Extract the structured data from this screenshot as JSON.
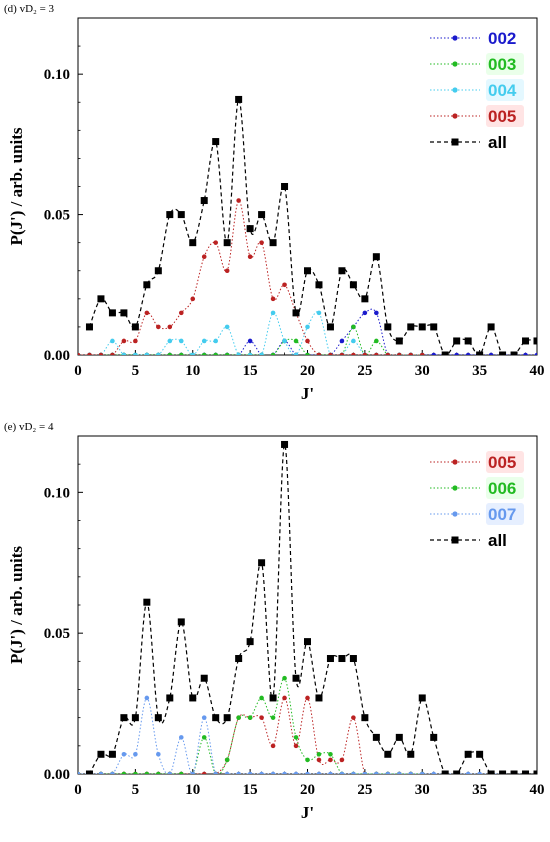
{
  "chart_data": [
    {
      "type": "line",
      "panel_label": "(d) vD₂ = 3",
      "xlabel": "J'",
      "ylabel": "P(J') / arb. units",
      "xlim": [
        0,
        40
      ],
      "ylim": [
        0,
        0.12
      ],
      "xticks": [
        0,
        5,
        10,
        15,
        20,
        25,
        30,
        35,
        40
      ],
      "yticks": [
        0.0,
        0.05,
        0.1
      ],
      "ytick_labels": [
        "0.00",
        "0.05",
        "0.10"
      ],
      "legend_position": "top-right",
      "series": [
        {
          "name": "002",
          "color": "#1a1acc",
          "label_bg": "#ffffff",
          "marker": "circle",
          "line": "dotted",
          "x": [
            0,
            1,
            2,
            3,
            4,
            5,
            6,
            7,
            8,
            9,
            10,
            11,
            12,
            13,
            14,
            15,
            16,
            17,
            18,
            19,
            20,
            21,
            22,
            23,
            24,
            25,
            26,
            27,
            28,
            29,
            30,
            31,
            32,
            33,
            34,
            35,
            36,
            37,
            38,
            39,
            40
          ],
          "y": [
            0,
            0,
            0,
            0,
            0,
            0,
            0,
            0,
            0,
            0,
            0,
            0,
            0,
            0,
            0,
            0.005,
            0,
            0,
            0.005,
            0,
            0,
            0,
            0,
            0.005,
            0.01,
            0.015,
            0.015,
            0,
            0,
            0,
            0,
            0,
            0,
            0,
            0,
            0,
            0,
            0,
            0,
            0,
            0
          ]
        },
        {
          "name": "003",
          "color": "#22bb22",
          "label_bg": "#eaffea",
          "marker": "circle",
          "line": "dotted",
          "x": [
            0,
            1,
            2,
            3,
            4,
            5,
            6,
            7,
            8,
            9,
            10,
            11,
            12,
            13,
            14,
            15,
            16,
            17,
            18,
            19,
            20,
            21,
            22,
            23,
            24,
            25,
            26,
            27,
            28,
            29,
            30
          ],
          "y": [
            0,
            0,
            0,
            0,
            0,
            0,
            0,
            0,
            0,
            0,
            0,
            0,
            0,
            0,
            0,
            0,
            0,
            0,
            0.005,
            0.005,
            0,
            0,
            0,
            0,
            0.01,
            0,
            0.005,
            0,
            0,
            0,
            0
          ]
        },
        {
          "name": "004",
          "color": "#44ccee",
          "label_bg": "#e4f8ff",
          "marker": "circle",
          "line": "dotted",
          "x": [
            0,
            1,
            2,
            3,
            4,
            5,
            6,
            7,
            8,
            9,
            10,
            11,
            12,
            13,
            14,
            15,
            16,
            17,
            18,
            19,
            20,
            21,
            22,
            23,
            24,
            25,
            26,
            27,
            28,
            29,
            30
          ],
          "y": [
            0,
            0,
            0,
            0.005,
            0,
            0,
            0,
            0,
            0.005,
            0.005,
            0,
            0.005,
            0.005,
            0.01,
            0,
            0,
            0,
            0.015,
            0.005,
            0,
            0.01,
            0.015,
            0,
            0,
            0.005,
            0,
            0,
            0,
            0,
            0,
            0
          ]
        },
        {
          "name": "005",
          "color": "#bb2222",
          "label_bg": "#ffe4e4",
          "marker": "circle",
          "line": "dotted",
          "x": [
            0,
            1,
            2,
            3,
            4,
            5,
            6,
            7,
            8,
            9,
            10,
            11,
            12,
            13,
            14,
            15,
            16,
            17,
            18,
            19,
            20,
            21,
            22,
            23,
            24,
            25,
            26,
            27,
            28,
            29,
            30
          ],
          "y": [
            0,
            0,
            0,
            0,
            0.005,
            0.005,
            0.015,
            0.01,
            0.01,
            0.015,
            0.02,
            0.035,
            0.04,
            0.03,
            0.055,
            0.035,
            0.04,
            0.02,
            0.025,
            0.015,
            0.005,
            0,
            0,
            0,
            0,
            0,
            0,
            0,
            0,
            0,
            0
          ]
        },
        {
          "name": "all",
          "color": "#000000",
          "label_bg": "#ffffff",
          "marker": "square",
          "line": "dashed",
          "x": [
            1,
            2,
            3,
            4,
            5,
            6,
            7,
            8,
            9,
            10,
            11,
            12,
            13,
            14,
            15,
            16,
            17,
            18,
            19,
            20,
            21,
            22,
            23,
            24,
            25,
            26,
            27,
            28,
            29,
            30,
            31,
            32,
            33,
            34,
            35,
            36,
            37,
            38,
            39,
            40
          ],
          "y": [
            0.01,
            0.02,
            0.015,
            0.015,
            0.01,
            0.025,
            0.03,
            0.05,
            0.05,
            0.04,
            0.055,
            0.076,
            0.04,
            0.091,
            0.045,
            0.05,
            0.04,
            0.06,
            0.015,
            0.03,
            0.025,
            0.01,
            0.03,
            0.025,
            0.02,
            0.035,
            0.01,
            0.005,
            0.01,
            0.01,
            0.01,
            0,
            0.005,
            0.005,
            0,
            0.01,
            0,
            0,
            0.005,
            0.005
          ]
        }
      ]
    },
    {
      "type": "line",
      "panel_label": "(e) vD₂ = 4",
      "xlabel": "J'",
      "ylabel": "P(J') / arb. units",
      "xlim": [
        0,
        40
      ],
      "ylim": [
        0,
        0.12
      ],
      "xticks": [
        0,
        5,
        10,
        15,
        20,
        25,
        30,
        35,
        40
      ],
      "yticks": [
        0.0,
        0.05,
        0.1
      ],
      "ytick_labels": [
        "0.00",
        "0.05",
        "0.10"
      ],
      "legend_position": "top-right",
      "series": [
        {
          "name": "005",
          "color": "#bb2222",
          "label_bg": "#ffe4e4",
          "marker": "circle",
          "line": "dotted",
          "x": [
            0,
            1,
            2,
            3,
            4,
            5,
            6,
            7,
            8,
            9,
            10,
            11,
            12,
            13,
            14,
            15,
            16,
            17,
            18,
            19,
            20,
            21,
            22,
            23,
            24,
            25,
            26,
            27,
            28,
            29,
            30
          ],
          "y": [
            0,
            0,
            0,
            0,
            0,
            0,
            0,
            0,
            0,
            0,
            0,
            0,
            0,
            0.005,
            0.02,
            0.02,
            0.02,
            0.01,
            0.027,
            0.01,
            0.027,
            0.005,
            0.005,
            0.005,
            0.02,
            0,
            0,
            0,
            0,
            0,
            0
          ]
        },
        {
          "name": "006",
          "color": "#22bb22",
          "label_bg": "#eaffea",
          "marker": "circle",
          "line": "dotted",
          "x": [
            0,
            1,
            2,
            3,
            4,
            5,
            6,
            7,
            8,
            9,
            10,
            11,
            12,
            13,
            14,
            15,
            16,
            17,
            18,
            19,
            20,
            21,
            22,
            23,
            24,
            25,
            26,
            27,
            28,
            29,
            30
          ],
          "y": [
            0,
            0,
            0,
            0,
            0,
            0,
            0,
            0,
            0,
            0,
            0,
            0.013,
            0,
            0.005,
            0.02,
            0.02,
            0.027,
            0.02,
            0.034,
            0.013,
            0.005,
            0.007,
            0.007,
            0,
            0,
            0,
            0,
            0,
            0,
            0,
            0
          ]
        },
        {
          "name": "007",
          "color": "#6699ee",
          "label_bg": "#e6efff",
          "marker": "circle",
          "line": "dotted",
          "x": [
            0,
            1,
            2,
            3,
            4,
            5,
            6,
            7,
            8,
            9,
            10,
            11,
            12,
            13,
            14,
            15,
            16,
            17,
            18,
            19,
            20,
            21,
            22,
            23,
            24,
            25,
            26,
            27,
            28,
            29,
            30,
            31,
            32,
            33,
            34,
            35,
            36,
            37,
            38,
            39,
            40
          ],
          "y": [
            0,
            0,
            0,
            0,
            0.007,
            0.007,
            0.027,
            0.007,
            0,
            0.013,
            0,
            0.02,
            0,
            0,
            0,
            0,
            0,
            0,
            0,
            0,
            0,
            0,
            0,
            0,
            0,
            0,
            0,
            0,
            0,
            0,
            0,
            0,
            0,
            0,
            0,
            0,
            0,
            0,
            0,
            0,
            0
          ]
        },
        {
          "name": "all",
          "color": "#000000",
          "label_bg": "#ffffff",
          "marker": "square",
          "line": "dashed",
          "x": [
            1,
            2,
            3,
            4,
            5,
            6,
            7,
            8,
            9,
            10,
            11,
            12,
            13,
            14,
            15,
            16,
            17,
            18,
            19,
            20,
            21,
            22,
            23,
            24,
            25,
            26,
            27,
            28,
            29,
            30,
            31,
            32,
            33,
            34,
            35,
            36,
            37,
            38,
            39,
            40
          ],
          "y": [
            0,
            0.007,
            0.007,
            0.02,
            0.02,
            0.061,
            0.02,
            0.027,
            0.054,
            0.027,
            0.034,
            0.02,
            0.02,
            0.041,
            0.047,
            0.075,
            0.027,
            0.117,
            0.034,
            0.047,
            0.027,
            0.041,
            0.041,
            0.041,
            0.02,
            0.013,
            0.007,
            0.013,
            0.007,
            0.027,
            0.013,
            0,
            0,
            0.007,
            0.007,
            0,
            0,
            0,
            0,
            0
          ]
        }
      ]
    }
  ]
}
